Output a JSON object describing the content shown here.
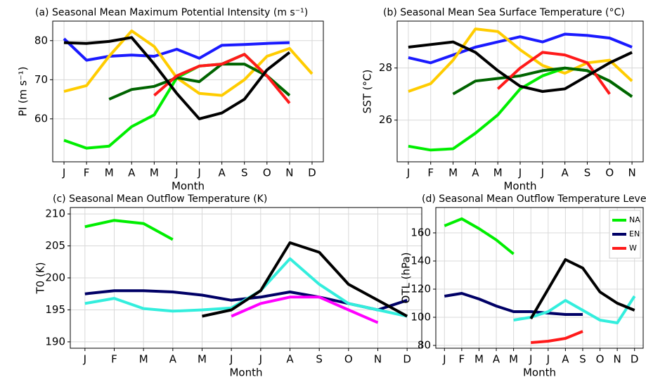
{
  "chart_data": [
    {
      "type": "line",
      "title": "(a) Seasonal Mean Maximum Potential Intensity (m s⁻¹)",
      "ylabel": "PI (m s⁻¹)",
      "xlabel": "Month",
      "categories": [
        "J",
        "F",
        "M",
        "A",
        "M",
        "J",
        "J",
        "A",
        "S",
        "O",
        "N",
        "D"
      ],
      "ylim": [
        49,
        85
      ],
      "yticks": [
        60,
        70,
        80
      ],
      "grid": true,
      "series": [
        {
          "color": "#1a1aff",
          "values": [
            80.5,
            75,
            76,
            76.3,
            76,
            77.8,
            75.5,
            78.8,
            79,
            79.3,
            79.5,
            null
          ]
        },
        {
          "color": "#ffcc00",
          "values": [
            67,
            68.5,
            76,
            82.5,
            78.5,
            70.5,
            66.5,
            66,
            70,
            76,
            78,
            71.5
          ]
        },
        {
          "color": "#00ee00",
          "values": [
            54.5,
            52.5,
            53,
            58,
            61,
            70.5,
            73.5,
            74,
            76.5,
            71,
            66,
            null
          ]
        },
        {
          "color": "#006400",
          "values": [
            null,
            null,
            65,
            67.5,
            68.3,
            70.5,
            69.5,
            74,
            74,
            71,
            66,
            null
          ]
        },
        {
          "color": "#ff1a1a",
          "values": [
            null,
            null,
            null,
            null,
            66,
            71,
            73.5,
            74,
            76.5,
            71,
            64,
            null
          ]
        },
        {
          "color": "#000000",
          "values": [
            79.5,
            79.3,
            79.8,
            80.8,
            74,
            66.5,
            60,
            61.5,
            65,
            72.5,
            77,
            null
          ]
        }
      ]
    },
    {
      "type": "line",
      "title": "(b) Seasonal Mean Sea Surface Temperature (°C)",
      "ylabel": "SST (°C)",
      "xlabel": "Month",
      "categories": [
        "J",
        "F",
        "M",
        "A",
        "M",
        "J",
        "J",
        "A",
        "S",
        "O",
        "N"
      ],
      "ylim": [
        24.4,
        29.8
      ],
      "yticks": [
        26,
        28
      ],
      "grid": true,
      "series": [
        {
          "color": "#1a1aff",
          "values": [
            28.4,
            28.2,
            28.5,
            28.8,
            29.0,
            29.2,
            29.0,
            29.3,
            29.25,
            29.15,
            28.8
          ]
        },
        {
          "color": "#ffcc00",
          "values": [
            27.1,
            27.4,
            28.3,
            29.5,
            29.4,
            28.7,
            28.1,
            27.8,
            28.2,
            28.3,
            27.5
          ]
        },
        {
          "color": "#00ee00",
          "values": [
            25.0,
            24.85,
            24.9,
            25.5,
            26.2,
            27.2,
            27.7,
            28.0,
            27.9,
            27.5,
            26.9
          ]
        },
        {
          "color": "#006400",
          "values": [
            null,
            null,
            27.0,
            27.5,
            27.6,
            27.7,
            27.9,
            28.0,
            27.9,
            27.5,
            26.9
          ]
        },
        {
          "color": "#ff1a1a",
          "values": [
            null,
            null,
            null,
            null,
            27.2,
            28.0,
            28.6,
            28.5,
            28.2,
            27.0,
            null
          ]
        },
        {
          "color": "#000000",
          "values": [
            28.8,
            28.9,
            29.0,
            28.6,
            27.9,
            27.3,
            27.1,
            27.2,
            27.7,
            28.2,
            28.6
          ]
        }
      ]
    },
    {
      "type": "line",
      "title": "(c) Seasonal Mean Outflow Temperature (K)",
      "ylabel": "T0 (K)",
      "xlabel": "Month",
      "categories": [
        "J",
        "F",
        "M",
        "A",
        "M",
        "J",
        "J",
        "A",
        "S",
        "O",
        "N",
        "D"
      ],
      "ylim": [
        189,
        211
      ],
      "yticks": [
        190,
        195,
        200,
        205,
        210
      ],
      "grid": true,
      "series": [
        {
          "color": "#00ee00",
          "values": [
            208,
            209,
            208.5,
            206,
            null,
            null,
            null,
            null,
            null,
            null,
            null,
            null
          ]
        },
        {
          "color": "#000066",
          "values": [
            197.5,
            198,
            198,
            197.8,
            197.3,
            196.5,
            197,
            197.8,
            197,
            196,
            195,
            196.5
          ]
        },
        {
          "color": "#33eedd",
          "values": [
            196,
            196.8,
            195.2,
            194.8,
            195,
            195.3,
            198,
            203,
            199,
            196,
            195,
            194
          ]
        },
        {
          "color": "#ff00ff",
          "values": [
            null,
            null,
            null,
            null,
            null,
            194,
            196,
            197,
            197,
            195,
            193,
            null
          ]
        },
        {
          "color": "#000000",
          "values": [
            null,
            null,
            null,
            null,
            194,
            195,
            198,
            205.5,
            204,
            199,
            196.5,
            194
          ]
        }
      ]
    },
    {
      "type": "line",
      "title": "(d) Seasonal Mean Outflow Temperature Level (",
      "ylabel": "OTL (hPa)",
      "xlabel": "Month",
      "categories": [
        "J",
        "F",
        "M",
        "A",
        "M",
        "J",
        "J",
        "A",
        "S",
        "O",
        "N",
        "D"
      ],
      "ylim": [
        78,
        178
      ],
      "yticks": [
        80,
        100,
        120,
        140,
        160
      ],
      "grid": true,
      "legend": "upper right",
      "series": [
        {
          "name": "NA",
          "color": "#00ee00",
          "values": [
            165,
            170,
            163,
            155,
            145,
            null,
            null,
            null,
            null,
            null,
            null,
            null
          ]
        },
        {
          "name": "EN",
          "color": "#000066",
          "values": [
            115,
            117,
            113,
            108,
            104,
            104,
            103,
            102,
            102,
            null,
            null,
            null
          ]
        },
        {
          "name": "W",
          "color": "#ff1a1a",
          "values": [
            null,
            null,
            null,
            null,
            null,
            82,
            83,
            85,
            90,
            null,
            null,
            null
          ]
        },
        {
          "color": "#33eedd",
          "values": [
            null,
            null,
            null,
            null,
            98,
            100,
            104,
            112,
            105,
            98,
            96,
            115
          ]
        },
        {
          "color": "#000000",
          "values": [
            null,
            null,
            null,
            null,
            null,
            99,
            120,
            141,
            135,
            118,
            110,
            105
          ]
        }
      ]
    }
  ]
}
